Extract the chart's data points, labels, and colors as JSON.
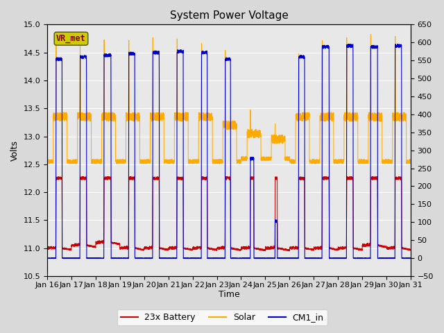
{
  "title": "System Power Voltage",
  "xlabel": "Time",
  "ylabel": "Volts",
  "ylim": [
    10.5,
    15.0
  ],
  "y2lim": [
    -50,
    650
  ],
  "yticks": [
    10.5,
    11.0,
    11.5,
    12.0,
    12.5,
    13.0,
    13.5,
    14.0,
    14.5,
    15.0
  ],
  "y2ticks": [
    -50,
    0,
    50,
    100,
    150,
    200,
    250,
    300,
    350,
    400,
    450,
    500,
    550,
    600,
    650
  ],
  "xtick_labels": [
    "Jan 16",
    "Jan 17",
    "Jan 18",
    "Jan 19",
    "Jan 20",
    "Jan 21",
    "Jan 22",
    "Jan 23",
    "Jan 24",
    "Jan 25",
    "Jan 26",
    "Jan 27",
    "Jan 28",
    "Jan 29",
    "Jan 30",
    "Jan 31"
  ],
  "legend_labels": [
    "23x Battery",
    "Solar",
    "CM1_in"
  ],
  "colors": {
    "battery": "#cc0000",
    "solar": "#ffaa00",
    "cm1": "#0000cc"
  },
  "vr_met_box_color": "#cccc00",
  "vr_met_text_color": "#800000",
  "background_color": "#e8e8e8",
  "title_fontsize": 11,
  "label_fontsize": 9,
  "tick_fontsize": 8,
  "day_profiles": [
    {
      "batt_base": 11.0,
      "cs": 0.36,
      "ce": 0.62,
      "solar_day": 13.35,
      "solar_night": 12.55,
      "sp": 14.75,
      "cp": 14.38
    },
    {
      "batt_base": 11.05,
      "cs": 0.35,
      "ce": 0.63,
      "solar_day": 13.35,
      "solar_night": 12.55,
      "sp": 14.72,
      "cp": 14.42
    },
    {
      "batt_base": 11.1,
      "cs": 0.34,
      "ce": 0.64,
      "solar_day": 13.35,
      "solar_night": 12.55,
      "sp": 14.7,
      "cp": 14.45
    },
    {
      "batt_base": 11.0,
      "cs": 0.36,
      "ce": 0.62,
      "solar_day": 13.35,
      "solar_night": 12.55,
      "sp": 14.72,
      "cp": 14.48
    },
    {
      "batt_base": 11.0,
      "cs": 0.35,
      "ce": 0.63,
      "solar_day": 13.35,
      "solar_night": 12.55,
      "sp": 14.74,
      "cp": 14.5
    },
    {
      "batt_base": 11.0,
      "cs": 0.35,
      "ce": 0.62,
      "solar_day": 13.35,
      "solar_night": 12.55,
      "sp": 14.72,
      "cp": 14.52
    },
    {
      "batt_base": 11.0,
      "cs": 0.36,
      "ce": 0.61,
      "solar_day": 13.35,
      "solar_night": 12.55,
      "sp": 14.68,
      "cp": 14.5
    },
    {
      "batt_base": 11.0,
      "cs": 0.34,
      "ce": 0.57,
      "solar_day": 13.2,
      "solar_night": 12.55,
      "sp": 14.55,
      "cp": 14.38
    },
    {
      "batt_base": 11.0,
      "cs": 0.38,
      "ce": 0.53,
      "solar_day": 13.05,
      "solar_night": 12.6,
      "sp": 13.5,
      "cp": 12.6
    },
    {
      "batt_base": 11.0,
      "cs": 0.4,
      "ce": 0.5,
      "solar_day": 12.95,
      "solar_night": 12.6,
      "sp": 13.2,
      "cp": 11.48
    },
    {
      "batt_base": 11.0,
      "cs": 0.37,
      "ce": 0.63,
      "solar_day": 13.35,
      "solar_night": 12.55,
      "sp": 14.5,
      "cp": 14.42
    },
    {
      "batt_base": 11.0,
      "cs": 0.34,
      "ce": 0.64,
      "solar_day": 13.35,
      "solar_night": 12.55,
      "sp": 14.72,
      "cp": 14.6
    },
    {
      "batt_base": 11.0,
      "cs": 0.35,
      "ce": 0.63,
      "solar_day": 13.35,
      "solar_night": 12.55,
      "sp": 14.75,
      "cp": 14.62
    },
    {
      "batt_base": 11.05,
      "cs": 0.34,
      "ce": 0.64,
      "solar_day": 13.35,
      "solar_night": 12.55,
      "sp": 14.8,
      "cp": 14.6
    },
    {
      "batt_base": 11.0,
      "cs": 0.35,
      "ce": 0.63,
      "solar_day": 13.35,
      "solar_night": 12.55,
      "sp": 14.78,
      "cp": 14.62
    }
  ]
}
